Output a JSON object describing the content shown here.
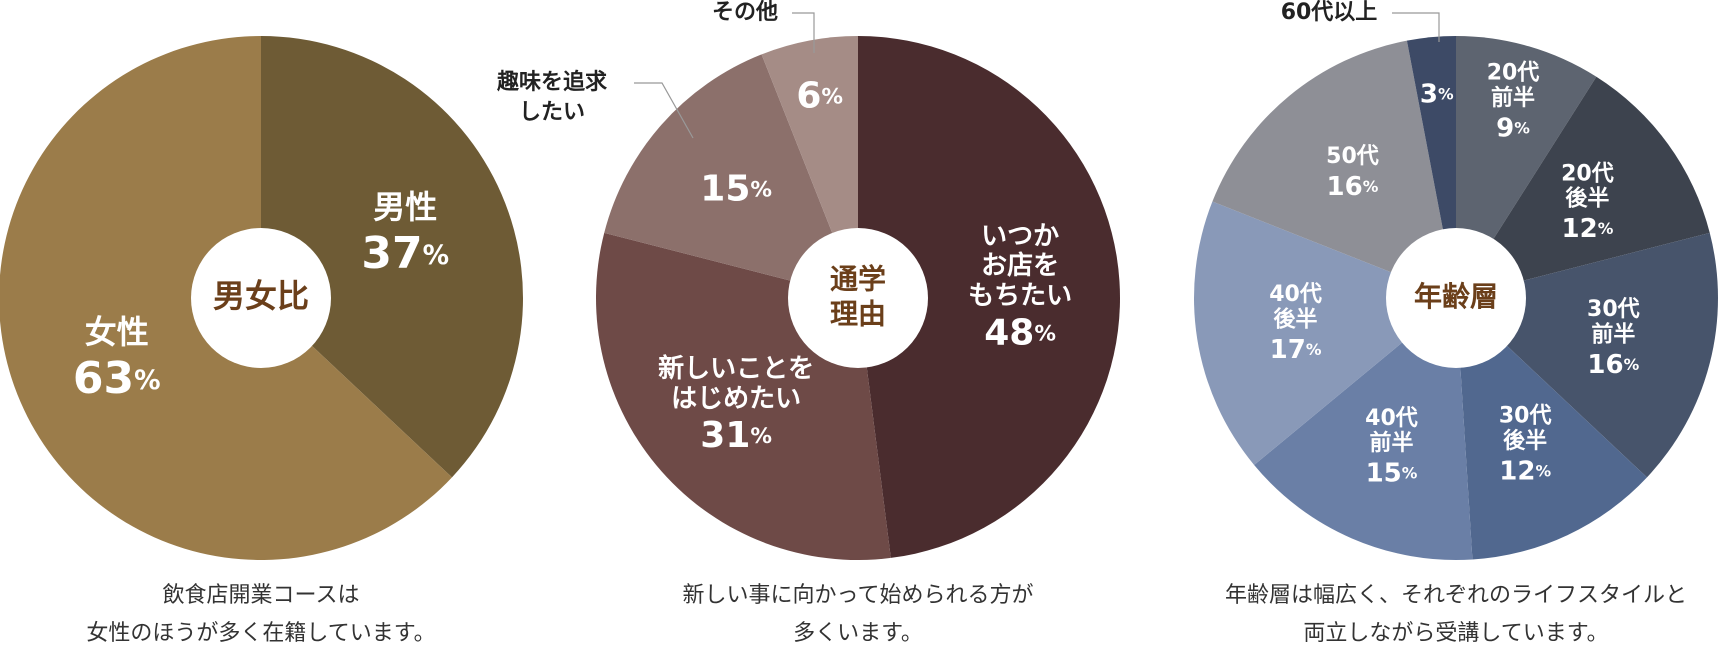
{
  "chart_data": [
    {
      "type": "pie",
      "title": "男女比",
      "categories": [
        "男性",
        "女性"
      ],
      "values": [
        37,
        63
      ],
      "value_labels": [
        "37%",
        "63%"
      ],
      "colors": [
        "#6e5b35",
        "#9b7c4a"
      ],
      "caption": "飲食店開業コースは\n女性のほうが多く在籍しています。"
    },
    {
      "type": "pie",
      "title": "通学\n理由",
      "categories": [
        "いつか\nお店を\nもちたい",
        "新しいことを\nはじめたい",
        "趣味を追求\nしたい",
        "その他"
      ],
      "values": [
        48,
        31,
        15,
        6
      ],
      "value_labels": [
        "48%",
        "31%",
        "15%",
        "6%"
      ],
      "colors": [
        "#4a2c2e",
        "#6e4a47",
        "#8c706b",
        "#a58c86"
      ],
      "caption": "新しい事に向かって始められる方が\n多くいます。"
    },
    {
      "type": "pie",
      "title": "年齢層",
      "categories": [
        "20代\n前半",
        "20代\n後半",
        "30代\n前半",
        "30代\n後半",
        "40代\n前半",
        "40代\n後半",
        "50代",
        "60代以上"
      ],
      "values": [
        9,
        12,
        16,
        12,
        15,
        17,
        16,
        3
      ],
      "value_labels": [
        "9%",
        "12%",
        "16%",
        "12%",
        "15%",
        "17%",
        "16%",
        "3%"
      ],
      "colors": [
        "#5d6470",
        "#3d434e",
        "#47546b",
        "#51688f",
        "#6a7fa6",
        "#8999b8",
        "#8e8f96",
        "#3d4a66"
      ],
      "caption": "年齢層は幅広く、それぞれのライフスタイルと\n両立しながら受講しています。"
    }
  ]
}
